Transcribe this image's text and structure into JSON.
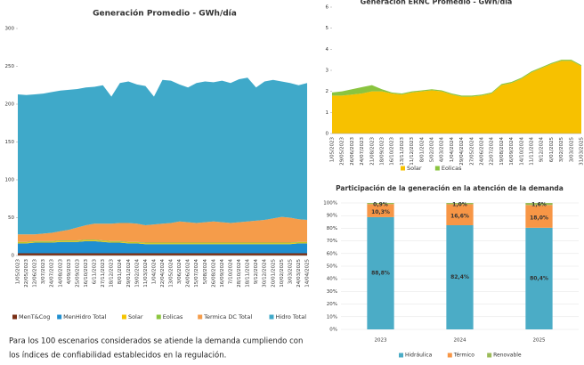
{
  "chart_data": [
    {
      "type": "area",
      "stacked": true,
      "title": "Generación Promedio - GWh/día",
      "categories": [
        "1/05/2023",
        "22/05/2023",
        "12/06/2023",
        "3/07/2023",
        "24/07/2023",
        "14/08/2023",
        "4/09/2023",
        "25/09/2023",
        "16/10/2023",
        "6/11/2023",
        "27/11/2023",
        "18/12/2023",
        "8/01/2024",
        "29/01/2024",
        "19/02/2024",
        "11/03/2024",
        "1/04/2024",
        "22/04/2024",
        "13/05/2024",
        "3/06/2024",
        "24/06/2024",
        "15/07/2024",
        "5/08/2024",
        "26/08/2024",
        "16/09/2024",
        "7/10/2024",
        "28/10/2024",
        "18/11/2024",
        "9/12/2024",
        "30/12/2024",
        "20/01/2025",
        "10/02/2025",
        "3/03/2025",
        "24/03/2025",
        "14/04/2025"
      ],
      "series": [
        {
          "name": "MenT&Cog",
          "color": "#7a2e14",
          "values": [
            3,
            3,
            3,
            3,
            3,
            3,
            3,
            3,
            3,
            3,
            3,
            3,
            3,
            3,
            3,
            3,
            3,
            3,
            3,
            3,
            3,
            3,
            3,
            3,
            3,
            3,
            3,
            3,
            3,
            3,
            3,
            3,
            3,
            3,
            3
          ]
        },
        {
          "name": "MenHidro Total",
          "color": "#1f8fd0",
          "values": [
            13,
            13,
            14,
            14,
            14,
            15,
            15,
            15,
            16,
            16,
            15,
            14,
            14,
            13,
            13,
            12,
            12,
            12,
            12,
            12,
            12,
            12,
            12,
            12,
            12,
            12,
            12,
            12,
            12,
            12,
            12,
            12,
            12,
            13,
            13
          ]
        },
        {
          "name": "Solar",
          "color": "#f5c400",
          "values": [
            1,
            1,
            1,
            1,
            1,
            1,
            1,
            1,
            1,
            1,
            1,
            1,
            1,
            1,
            1,
            1,
            1,
            1,
            1,
            1,
            1,
            1,
            1,
            1,
            1,
            1,
            1,
            1,
            1,
            1,
            1,
            1,
            1,
            1,
            1
          ]
        },
        {
          "name": "Eolicas",
          "color": "#8cc63f",
          "values": [
            1,
            1,
            1,
            1,
            1,
            1,
            1,
            1,
            1,
            1,
            1,
            1,
            1,
            1,
            1,
            1,
            1,
            1,
            1,
            1,
            1,
            1,
            1,
            1,
            1,
            1,
            1,
            1,
            1,
            1,
            1,
            1,
            1,
            1,
            1
          ]
        },
        {
          "name": "Termica DC Total",
          "color": "#f59c4a",
          "values": [
            10,
            10,
            9,
            10,
            11,
            12,
            14,
            17,
            19,
            21,
            22,
            23,
            24,
            25,
            24,
            23,
            24,
            25,
            26,
            28,
            27,
            26,
            27,
            28,
            27,
            26,
            27,
            28,
            29,
            30,
            32,
            34,
            33,
            30,
            29
          ]
        },
        {
          "name": "Hidro Total",
          "color": "#3fa9c9",
          "values": [
            185,
            184,
            185,
            185,
            186,
            186,
            185,
            183,
            182,
            181,
            183,
            168,
            185,
            187,
            184,
            184,
            169,
            190,
            188,
            181,
            178,
            185,
            186,
            184,
            187,
            185,
            189,
            190,
            176,
            183,
            183,
            179,
            178,
            177,
            181
          ]
        }
      ],
      "ylim": [
        0,
        300
      ],
      "yticks": [
        0,
        50,
        100,
        150,
        200,
        250,
        300
      ],
      "grid": false
    },
    {
      "type": "area",
      "stacked": true,
      "title": "Generación ERNC Promedio - GWh/día",
      "categories": [
        "1/05/2023",
        "29/05/2023",
        "26/06/2023",
        "24/07/2023",
        "21/08/2023",
        "18/09/2023",
        "16/10/2023",
        "13/11/2023",
        "11/12/2023",
        "8/01/2024",
        "5/02/2024",
        "4/03/2024",
        "1/04/2024",
        "29/04/2024",
        "27/05/2024",
        "24/06/2024",
        "22/07/2024",
        "19/08/2024",
        "16/09/2024",
        "14/10/2024",
        "11/11/2024",
        "9/12/2024",
        "6/01/2025",
        "3/02/2025",
        "3/03/2025",
        "31/03/2025"
      ],
      "series": [
        {
          "name": "Solar",
          "color": "#f7c100",
          "values": [
            1.8,
            1.8,
            1.85,
            1.9,
            2.0,
            2.0,
            1.9,
            1.85,
            1.95,
            2.0,
            2.05,
            2.0,
            1.85,
            1.75,
            1.75,
            1.8,
            1.9,
            2.3,
            2.4,
            2.6,
            2.9,
            3.1,
            3.3,
            3.45,
            3.45,
            3.2
          ]
        },
        {
          "name": "Eolicas",
          "color": "#8ac43f",
          "values": [
            0.15,
            0.2,
            0.25,
            0.3,
            0.3,
            0.1,
            0.05,
            0.05,
            0.05,
            0.05,
            0.05,
            0.05,
            0.05,
            0.05,
            0.05,
            0.05,
            0.05,
            0.05,
            0.05,
            0.05,
            0.05,
            0.05,
            0.05,
            0.05,
            0.05,
            0.05
          ]
        }
      ],
      "ylim": [
        0,
        6
      ],
      "yticks": [
        0,
        1,
        2,
        3,
        4,
        5,
        6
      ],
      "grid": false
    },
    {
      "type": "bar",
      "stacked": true,
      "title": "Participación de la generación en la atención de la demanda",
      "categories": [
        "2023",
        "2024",
        "2025"
      ],
      "series": [
        {
          "name": "Hidráulica",
          "color": "#4bacc6",
          "values": [
            88.8,
            82.4,
            80.4
          ],
          "value_labels": [
            "88,8%",
            "82,4%",
            "80,4%"
          ]
        },
        {
          "name": "Térmico",
          "color": "#f79646",
          "values": [
            10.3,
            16.6,
            18.0
          ],
          "value_labels": [
            "10,3%",
            "16,6%",
            "18,0%"
          ]
        },
        {
          "name": "Renovable",
          "color": "#9bbb59",
          "values": [
            0.9,
            1.0,
            1.6
          ],
          "value_labels": [
            "0,9%",
            "1,0%",
            "1,6%"
          ]
        }
      ],
      "ylim": [
        0,
        100
      ],
      "yticks": [
        {
          "value": 0,
          "label": "0%"
        },
        {
          "value": 10,
          "label": "10%"
        },
        {
          "value": 20,
          "label": "20%"
        },
        {
          "value": 30,
          "label": "30%"
        },
        {
          "value": 40,
          "label": "40%"
        },
        {
          "value": 50,
          "label": "50%"
        },
        {
          "value": 60,
          "label": "60%"
        },
        {
          "value": 70,
          "label": "70%"
        },
        {
          "value": 80,
          "label": "80%"
        },
        {
          "value": 90,
          "label": "90%"
        },
        {
          "value": 100,
          "label": "100%"
        }
      ],
      "grid": true
    }
  ],
  "note": [
    "Para los 100 escenarios considerados se atiende la demanda  cumpliendo con",
    "los índices de confiabilidad establecidos en la  regulación."
  ]
}
